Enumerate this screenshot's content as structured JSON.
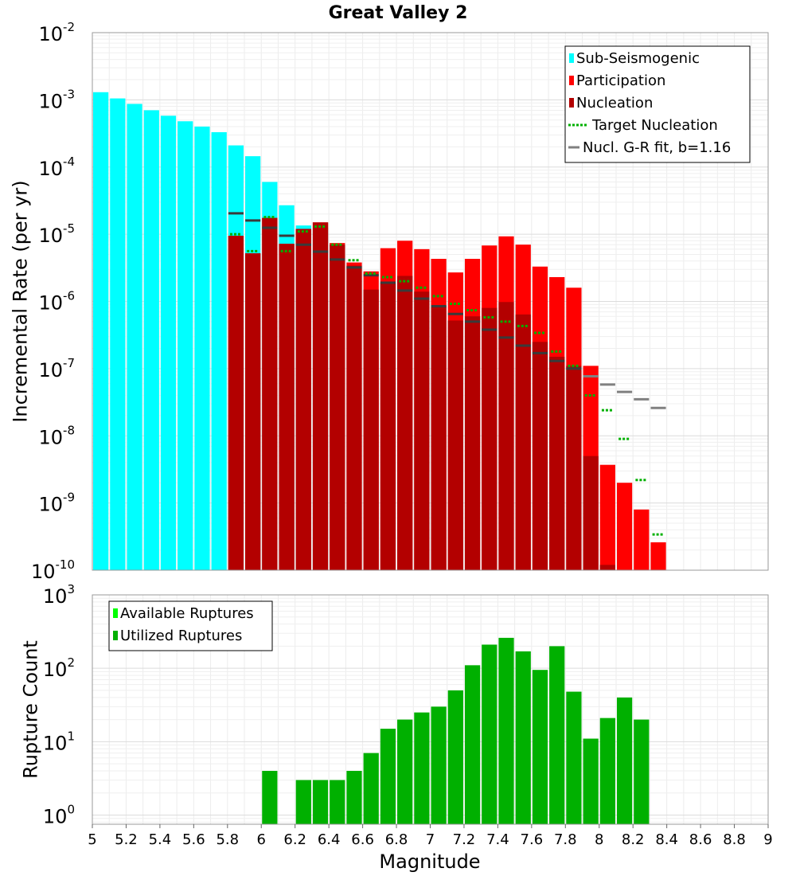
{
  "chart_data": [
    {
      "type": "bar",
      "title": "Great Valley 2",
      "ylabel": "Incremental Rate (per yr)",
      "xlabel": "",
      "x_range": [
        5,
        9
      ],
      "y_scale": "log",
      "ylim": [
        1e-10,
        0.01
      ],
      "y_ticks": [
        {
          "base": "10",
          "exp": "-10"
        },
        {
          "base": "10",
          "exp": "-9"
        },
        {
          "base": "10",
          "exp": "-8"
        },
        {
          "base": "10",
          "exp": "-7"
        },
        {
          "base": "10",
          "exp": "-6"
        },
        {
          "base": "10",
          "exp": "-5"
        },
        {
          "base": "10",
          "exp": "-4"
        },
        {
          "base": "10",
          "exp": "-3"
        },
        {
          "base": "10",
          "exp": "-2"
        }
      ],
      "grid": true,
      "legend_position": "top-right",
      "legend": [
        {
          "label": "Sub-Seismogenic",
          "color": "#00ffff",
          "style": "bar"
        },
        {
          "label": "Participation",
          "color": "#ff0000",
          "style": "bar"
        },
        {
          "label": "Nucleation",
          "color": "#b30000",
          "style": "bar"
        },
        {
          "label": "Target Nucleation",
          "color": "#00b000",
          "style": "dotted"
        },
        {
          "label": "Nucl. G-R fit, b=1.16",
          "color": "#808080",
          "style": "dash"
        }
      ],
      "series": [
        {
          "name": "Sub-Seismogenic",
          "color": "#00ffff",
          "x": [
            5.05,
            5.15,
            5.25,
            5.35,
            5.45,
            5.55,
            5.65,
            5.75,
            5.85,
            5.95,
            6.05,
            6.15,
            6.25,
            6.35
          ],
          "values": [
            0.0013,
            0.00105,
            0.00087,
            0.0007,
            0.00058,
            0.00048,
            0.0004,
            0.00033,
            0.00021,
            0.000145,
            6e-05,
            2.7e-05,
            1.35e-05,
            1.25e-05
          ]
        },
        {
          "name": "Participation",
          "color": "#ff0000",
          "x": [
            5.85,
            5.95,
            6.05,
            6.15,
            6.25,
            6.35,
            6.45,
            6.55,
            6.65,
            6.75,
            6.85,
            6.95,
            7.05,
            7.15,
            7.25,
            7.35,
            7.45,
            7.55,
            7.65,
            7.75,
            7.85,
            7.95,
            8.05,
            8.15,
            8.25,
            8.35
          ],
          "values": [
            9.5e-06,
            5.2e-06,
            1.75e-05,
            7.2e-06,
            1.2e-05,
            1.5e-05,
            7.4e-06,
            3.8e-06,
            2.8e-06,
            6.2e-06,
            8e-06,
            6e-06,
            4.3e-06,
            2.7e-06,
            4.3e-06,
            6.8e-06,
            9.3e-06,
            7e-06,
            3.3e-06,
            2.3e-06,
            1.6e-06,
            1.1e-07,
            3.7e-09,
            2e-09,
            8e-10,
            2.6e-10
          ]
        },
        {
          "name": "Nucleation",
          "color": "#b30000",
          "x": [
            5.85,
            5.95,
            6.05,
            6.15,
            6.25,
            6.35,
            6.45,
            6.55,
            6.65,
            6.75,
            6.85,
            6.95,
            7.05,
            7.15,
            7.25,
            7.35,
            7.45,
            7.55,
            7.65,
            7.75,
            7.85,
            7.95,
            8.05
          ],
          "values": [
            9.5e-06,
            5.2e-06,
            1.75e-05,
            7.2e-06,
            1.2e-05,
            1.5e-05,
            7e-06,
            3.4e-06,
            1.5e-06,
            1.9e-06,
            2.4e-06,
            1.4e-06,
            8.5e-07,
            5.2e-07,
            6e-07,
            8e-07,
            9.8e-07,
            6.4e-07,
            2.5e-07,
            1.5e-07,
            1.1e-07,
            5e-09,
            1.2e-10
          ]
        },
        {
          "name": "Target Nucleation",
          "color": "#00b000",
          "x": [
            5.85,
            5.95,
            6.05,
            6.15,
            6.25,
            6.35,
            6.45,
            6.55,
            6.65,
            6.75,
            6.85,
            6.95,
            7.05,
            7.15,
            7.25,
            7.35,
            7.45,
            7.55,
            7.65,
            7.75,
            7.85,
            7.95,
            8.05,
            8.15,
            8.25,
            8.35
          ],
          "values": [
            1e-05,
            5.6e-06,
            1.8e-05,
            5.6e-06,
            1.1e-05,
            1.3e-05,
            7e-06,
            4.1e-06,
            2.6e-06,
            2.3e-06,
            2e-06,
            1.6e-06,
            1.2e-06,
            9.2e-07,
            7.4e-07,
            5.8e-07,
            5e-07,
            4.3e-07,
            3.4e-07,
            1.8e-07,
            1.1e-07,
            4e-08,
            2.4e-08,
            9e-09,
            2.2e-09,
            3.4e-10
          ]
        },
        {
          "name": "Nucl. G-R fit, b=1.16",
          "color": "#808080",
          "x": [
            5.85,
            5.95,
            6.05,
            6.15,
            6.25,
            6.35,
            6.45,
            6.55,
            6.65,
            6.75,
            6.85,
            6.95,
            7.05,
            7.15,
            7.25,
            7.35,
            7.45,
            7.55,
            7.65,
            7.75,
            7.85,
            7.95,
            8.05,
            8.15,
            8.25,
            8.35
          ],
          "values": [
            2.05e-05,
            1.6e-05,
            1.25e-05,
            9.5e-06,
            7e-06,
            5.5e-06,
            4.2e-06,
            3.2e-06,
            2.45e-06,
            1.9e-06,
            1.45e-06,
            1.1e-06,
            8.5e-07,
            6.5e-07,
            5e-07,
            3.8e-07,
            2.9e-07,
            2.2e-07,
            1.7e-07,
            1.3e-07,
            1e-07,
            7.7e-08,
            5.8e-08,
            4.5e-08,
            3.5e-08,
            2.6e-08
          ]
        }
      ]
    },
    {
      "type": "bar",
      "title": "",
      "xlabel": "Magnitude",
      "ylabel": "Rupture Count",
      "x_range": [
        5,
        9
      ],
      "x_ticks": [
        "5",
        "5.2",
        "5.4",
        "5.6",
        "5.8",
        "6",
        "6.2",
        "6.4",
        "6.6",
        "6.8",
        "7",
        "7.2",
        "7.4",
        "7.6",
        "7.8",
        "8",
        "8.2",
        "8.4",
        "8.6",
        "8.8",
        "9"
      ],
      "y_scale": "log",
      "ylim": [
        0.75,
        1000
      ],
      "y_ticks": [
        {
          "base": "10",
          "exp": "0"
        },
        {
          "base": "10",
          "exp": "1"
        },
        {
          "base": "10",
          "exp": "2"
        },
        {
          "base": "10",
          "exp": "3"
        }
      ],
      "grid": true,
      "legend_position": "top-left",
      "legend": [
        {
          "label": "Available Ruptures",
          "color": "#00ff00",
          "style": "bar"
        },
        {
          "label": "Utilized Ruptures",
          "color": "#00b000",
          "style": "bar"
        }
      ],
      "series": [
        {
          "name": "Utilized Ruptures",
          "color": "#00b000",
          "x": [
            6.05,
            6.25,
            6.35,
            6.45,
            6.55,
            6.65,
            6.75,
            6.85,
            6.95,
            7.05,
            7.15,
            7.25,
            7.35,
            7.45,
            7.55,
            7.65,
            7.75,
            7.85,
            7.95,
            8.05,
            8.15,
            8.25
          ],
          "values": [
            4,
            3,
            3,
            3,
            4,
            7,
            15,
            20,
            25,
            30,
            50,
            110,
            210,
            260,
            170,
            95,
            200,
            48,
            11,
            21,
            40,
            20
          ]
        }
      ]
    }
  ]
}
